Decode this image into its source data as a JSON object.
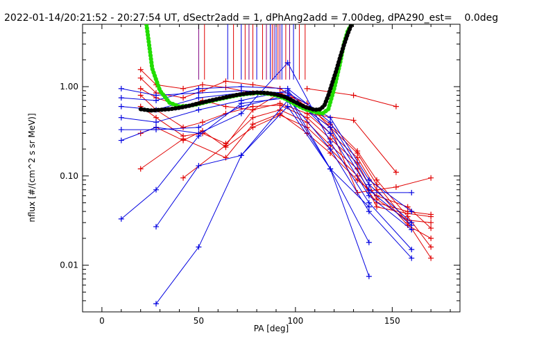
{
  "chart_data": {
    "type": "line",
    "title": "2022-01-14/20:21:52 - 20:27:54 UT, dSectr2add = 1, dPhAng2add = 7.00deg, dPA290_est=    0.0deg",
    "xlabel": "PA [deg]",
    "ylabel": "nflux [#/(cm^2 s sr MeV)]",
    "xlim": [
      -10,
      185
    ],
    "ylim": [
      0.003,
      5.0
    ],
    "y_scale": "log",
    "x_ticks": [
      0,
      50,
      100,
      150
    ],
    "x_tick_labels": [
      "0",
      "50",
      "100",
      "150"
    ],
    "y_ticks": [
      0.01,
      0.1,
      1.0
    ],
    "y_tick_labels": [
      "0.01",
      "0.10",
      "1.00"
    ],
    "grid": false,
    "legend": "none",
    "colors": {
      "red_series": "#e00000",
      "blue_series": "#0000e0",
      "fit_green": "#22dd00",
      "fit_black": "#000000",
      "marker_red": "#e00000",
      "marker_blue": "#0000e0",
      "marker_purple": "#800080"
    },
    "vertical_markers": {
      "x": [
        50,
        53,
        65,
        68,
        72,
        74,
        76,
        78,
        80,
        83,
        85,
        87,
        88,
        89,
        90,
        91,
        92,
        93,
        95,
        97,
        99,
        102,
        105
      ],
      "colors": [
        "purple",
        "red",
        "blue",
        "red",
        "blue",
        "red",
        "purple",
        "red",
        "blue",
        "red",
        "purple",
        "blue",
        "red",
        "purple",
        "blue",
        "red",
        "purple",
        "blue",
        "red",
        "purple",
        "blue",
        "red",
        "red"
      ],
      "y_from": 1.2,
      "y_to": 5.0
    },
    "series": [
      {
        "color": "red",
        "x": [
          20,
          28,
          42,
          52,
          64,
          78,
          92,
          106,
          118,
          132,
          142,
          158,
          170
        ],
        "y": [
          1.55,
          1.05,
          0.95,
          1.05,
          0.98,
          0.85,
          0.8,
          0.55,
          0.35,
          0.18,
          0.08,
          0.03,
          0.012
        ]
      },
      {
        "color": "red",
        "x": [
          20,
          28,
          42,
          52,
          64,
          78,
          92,
          106,
          118,
          132,
          142,
          158,
          170
        ],
        "y": [
          1.25,
          0.85,
          0.75,
          0.9,
          1.15,
          1.05,
          0.95,
          0.6,
          0.38,
          0.19,
          0.09,
          0.035,
          0.016
        ]
      },
      {
        "color": "red",
        "x": [
          20,
          28,
          42,
          52,
          64,
          78,
          92,
          106,
          118,
          132,
          142,
          158,
          170
        ],
        "y": [
          0.95,
          0.75,
          0.6,
          0.7,
          0.6,
          0.55,
          0.65,
          0.5,
          0.3,
          0.16,
          0.07,
          0.028,
          0.02
        ]
      },
      {
        "color": "red",
        "x": [
          20,
          28,
          42,
          52,
          64,
          78,
          92,
          106,
          118,
          132,
          142,
          158,
          170
        ],
        "y": [
          0.8,
          0.55,
          0.35,
          0.4,
          0.5,
          0.6,
          0.62,
          0.45,
          0.26,
          0.14,
          0.055,
          0.032,
          0.03
        ]
      },
      {
        "color": "red",
        "x": [
          20,
          28,
          42,
          52,
          64,
          78,
          92,
          106,
          118,
          132,
          142,
          158,
          170
        ],
        "y": [
          0.6,
          0.45,
          0.28,
          0.3,
          0.23,
          0.45,
          0.55,
          0.4,
          0.22,
          0.12,
          0.045,
          0.038,
          0.035
        ]
      },
      {
        "color": "red",
        "x": [
          20,
          28,
          42,
          52,
          64,
          78,
          92,
          106,
          118,
          132,
          142,
          158,
          170
        ],
        "y": [
          0.3,
          0.35,
          0.25,
          0.32,
          0.21,
          0.35,
          0.48,
          0.35,
          0.2,
          0.1,
          0.05,
          0.04,
          0.037
        ]
      },
      {
        "color": "red",
        "x": [
          20,
          42,
          64,
          78,
          92,
          106,
          118,
          132,
          142,
          158,
          170
        ],
        "y": [
          0.12,
          0.26,
          0.16,
          0.38,
          0.5,
          0.3,
          0.18,
          0.09,
          0.06,
          0.045,
          0.026
        ]
      },
      {
        "color": "red",
        "x": [
          42,
          64,
          78,
          92,
          106,
          118,
          132,
          152,
          170
        ],
        "y": [
          0.095,
          0.22,
          0.55,
          0.85,
          0.65,
          0.35,
          0.065,
          0.075,
          0.095
        ]
      },
      {
        "color": "red",
        "x": [
          106,
          130,
          152
        ],
        "y": [
          0.95,
          0.8,
          0.6
        ]
      },
      {
        "color": "red",
        "x": [
          106,
          130,
          152
        ],
        "y": [
          0.5,
          0.42,
          0.11
        ]
      },
      {
        "color": "blue",
        "x": [
          10,
          28,
          50,
          72,
          96,
          118,
          138,
          160
        ],
        "y": [
          0.95,
          0.8,
          0.85,
          0.9,
          0.85,
          0.45,
          0.09,
          0.04
        ]
      },
      {
        "color": "blue",
        "x": [
          10,
          28,
          50,
          72,
          96,
          118,
          138,
          160
        ],
        "y": [
          0.75,
          0.7,
          0.95,
          1.0,
          0.95,
          0.4,
          0.08,
          0.03
        ]
      },
      {
        "color": "blue",
        "x": [
          10,
          28,
          50,
          72,
          96,
          118,
          138,
          160
        ],
        "y": [
          0.6,
          0.55,
          0.75,
          0.85,
          0.8,
          0.35,
          0.07,
          0.028
        ]
      },
      {
        "color": "blue",
        "x": [
          10,
          28,
          50,
          72,
          96,
          118,
          138,
          160
        ],
        "y": [
          0.45,
          0.4,
          0.55,
          0.7,
          0.9,
          0.3,
          0.06,
          0.025
        ]
      },
      {
        "color": "blue",
        "x": [
          10,
          28,
          50,
          72,
          96,
          118,
          138,
          160
        ],
        "y": [
          0.25,
          0.35,
          0.3,
          0.5,
          1.85,
          0.24,
          0.05,
          0.015
        ]
      },
      {
        "color": "blue",
        "x": [
          10,
          28,
          50,
          72,
          96,
          118,
          138,
          160
        ],
        "y": [
          0.033,
          0.07,
          0.28,
          0.65,
          0.75,
          0.2,
          0.04,
          0.012
        ]
      },
      {
        "color": "blue",
        "x": [
          28,
          50,
          72,
          96,
          118,
          138
        ],
        "y": [
          0.027,
          0.13,
          0.17,
          0.6,
          0.12,
          0.0075
        ]
      },
      {
        "color": "blue",
        "x": [
          28,
          50,
          72,
          96,
          118,
          138
        ],
        "y": [
          0.0037,
          0.016,
          0.17,
          0.7,
          0.12,
          0.018
        ]
      },
      {
        "color": "blue",
        "x": [
          10,
          28,
          50,
          72,
          96,
          118,
          138
        ],
        "y": [
          0.33,
          0.33,
          0.35,
          0.6,
          0.8,
          0.12,
          0.045
        ]
      },
      {
        "color": "blue",
        "x": [
          138,
          160
        ],
        "y": [
          0.065,
          0.065
        ]
      }
    ],
    "fit_curves": [
      {
        "color": "green",
        "style": "dotted-thick",
        "x": [
          23,
          26,
          30,
          35,
          40,
          45,
          50,
          55,
          60,
          65,
          70,
          75,
          80,
          85,
          90,
          95,
          100,
          105,
          110,
          114,
          117,
          120,
          123,
          125,
          127,
          129
        ],
        "y": [
          5.0,
          1.6,
          0.9,
          0.66,
          0.6,
          0.61,
          0.64,
          0.68,
          0.72,
          0.76,
          0.8,
          0.83,
          0.85,
          0.84,
          0.8,
          0.73,
          0.63,
          0.56,
          0.52,
          0.5,
          0.56,
          0.95,
          1.8,
          3.0,
          4.2,
          5.0
        ]
      },
      {
        "color": "black",
        "style": "dotted-thick",
        "x": [
          20,
          25,
          30,
          35,
          40,
          45,
          50,
          55,
          60,
          65,
          70,
          75,
          80,
          85,
          90,
          95,
          100,
          105,
          110,
          113,
          115,
          117,
          119,
          121,
          123,
          125,
          127,
          129
        ],
        "y": [
          0.56,
          0.54,
          0.55,
          0.56,
          0.58,
          0.61,
          0.65,
          0.69,
          0.73,
          0.77,
          0.81,
          0.84,
          0.86,
          0.85,
          0.82,
          0.76,
          0.67,
          0.59,
          0.55,
          0.56,
          0.62,
          0.8,
          1.1,
          1.5,
          2.1,
          2.9,
          3.9,
          5.0
        ]
      }
    ]
  }
}
